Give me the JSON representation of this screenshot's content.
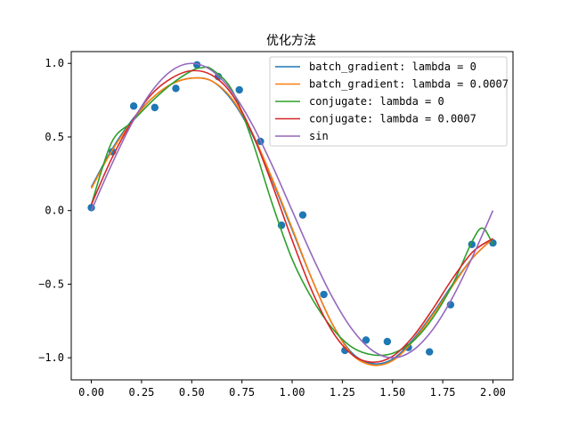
{
  "chart_data": {
    "type": "line",
    "title": "优化方法",
    "xlabel": "",
    "ylabel": "",
    "xlim": [
      -0.1,
      2.1
    ],
    "ylim": [
      -1.15,
      1.08
    ],
    "xticks": [
      0.0,
      0.25,
      0.5,
      0.75,
      1.0,
      1.25,
      1.5,
      1.75,
      2.0
    ],
    "xtick_labels": [
      "0.00",
      "0.25",
      "0.50",
      "0.75",
      "1.00",
      "1.25",
      "1.50",
      "1.75",
      "2.00"
    ],
    "yticks": [
      -1.0,
      -0.5,
      0.0,
      0.5,
      1.0
    ],
    "ytick_labels": [
      "−1.0",
      "−0.5",
      "0.0",
      "0.5",
      "1.0"
    ],
    "grid": false,
    "legend_position": "top-right",
    "scatter": {
      "color": "#1f77b4",
      "x": [
        0.0,
        0.105,
        0.211,
        0.316,
        0.421,
        0.526,
        0.632,
        0.737,
        0.842,
        0.947,
        1.053,
        1.158,
        1.263,
        1.368,
        1.474,
        1.579,
        1.684,
        1.789,
        1.895,
        2.0
      ],
      "y": [
        0.02,
        0.4,
        0.71,
        0.7,
        0.83,
        0.99,
        0.91,
        0.82,
        0.47,
        -0.1,
        -0.03,
        -0.57,
        -0.95,
        -0.88,
        -0.89,
        -0.93,
        -0.96,
        -0.64,
        -0.23,
        -0.22
      ]
    },
    "series": [
      {
        "name": "batch_gradient: lambda = 0",
        "color": "#1f77b4",
        "x": [
          0.0,
          0.1,
          0.2,
          0.3,
          0.4,
          0.5,
          0.6,
          0.7,
          0.8,
          0.9,
          1.0,
          1.1,
          1.2,
          1.3,
          1.4,
          1.5,
          1.6,
          1.7,
          1.8,
          1.9,
          2.0
        ],
        "y": [
          0.16,
          0.41,
          0.61,
          0.76,
          0.86,
          0.9,
          0.88,
          0.75,
          0.52,
          0.21,
          -0.13,
          -0.47,
          -0.77,
          -0.97,
          -1.04,
          -1.01,
          -0.88,
          -0.7,
          -0.5,
          -0.32,
          -0.19
        ]
      },
      {
        "name": "batch_gradient: lambda = 0.0007",
        "color": "#ff7f0e",
        "x": [
          0.0,
          0.1,
          0.2,
          0.3,
          0.4,
          0.5,
          0.6,
          0.7,
          0.8,
          0.9,
          1.0,
          1.1,
          1.2,
          1.3,
          1.4,
          1.5,
          1.6,
          1.7,
          1.8,
          1.9,
          2.0
        ],
        "y": [
          0.15,
          0.4,
          0.6,
          0.76,
          0.86,
          0.9,
          0.88,
          0.76,
          0.53,
          0.22,
          -0.12,
          -0.47,
          -0.77,
          -0.98,
          -1.05,
          -1.02,
          -0.89,
          -0.71,
          -0.51,
          -0.32,
          -0.19
        ]
      },
      {
        "name": "conjugate: lambda = 0",
        "color": "#2ca02c",
        "x": [
          0.0,
          0.1,
          0.2,
          0.3,
          0.4,
          0.5,
          0.55,
          0.6,
          0.7,
          0.8,
          0.9,
          1.0,
          1.1,
          1.2,
          1.3,
          1.4,
          1.5,
          1.6,
          1.7,
          1.8,
          1.9,
          1.95,
          2.0
        ],
        "y": [
          0.04,
          0.46,
          0.6,
          0.74,
          0.86,
          0.95,
          0.97,
          0.96,
          0.82,
          0.48,
          0.05,
          -0.33,
          -0.6,
          -0.8,
          -0.93,
          -0.98,
          -0.97,
          -0.89,
          -0.73,
          -0.5,
          -0.2,
          -0.12,
          -0.23
        ]
      },
      {
        "name": "conjugate: lambda = 0.0007",
        "color": "#d62728",
        "x": [
          0.0,
          0.1,
          0.2,
          0.3,
          0.4,
          0.5,
          0.6,
          0.7,
          0.8,
          0.9,
          1.0,
          1.1,
          1.2,
          1.3,
          1.4,
          1.5,
          1.6,
          1.7,
          1.8,
          1.9,
          2.0
        ],
        "y": [
          0.04,
          0.35,
          0.6,
          0.79,
          0.9,
          0.95,
          0.92,
          0.79,
          0.53,
          0.18,
          -0.2,
          -0.55,
          -0.82,
          -0.98,
          -1.03,
          -0.99,
          -0.86,
          -0.67,
          -0.46,
          -0.28,
          -0.19
        ]
      },
      {
        "name": "sin",
        "color": "#9467bd",
        "x": [
          0.0,
          0.1,
          0.2,
          0.3,
          0.4,
          0.5,
          0.6,
          0.7,
          0.8,
          0.9,
          1.0,
          1.1,
          1.2,
          1.3,
          1.4,
          1.5,
          1.6,
          1.7,
          1.8,
          1.9,
          2.0
        ],
        "y": [
          0.0,
          0.309,
          0.588,
          0.809,
          0.951,
          1.0,
          0.951,
          0.809,
          0.588,
          0.309,
          0.0,
          -0.309,
          -0.588,
          -0.809,
          -0.951,
          -1.0,
          -0.951,
          -0.809,
          -0.588,
          -0.309,
          0.0
        ]
      }
    ]
  }
}
